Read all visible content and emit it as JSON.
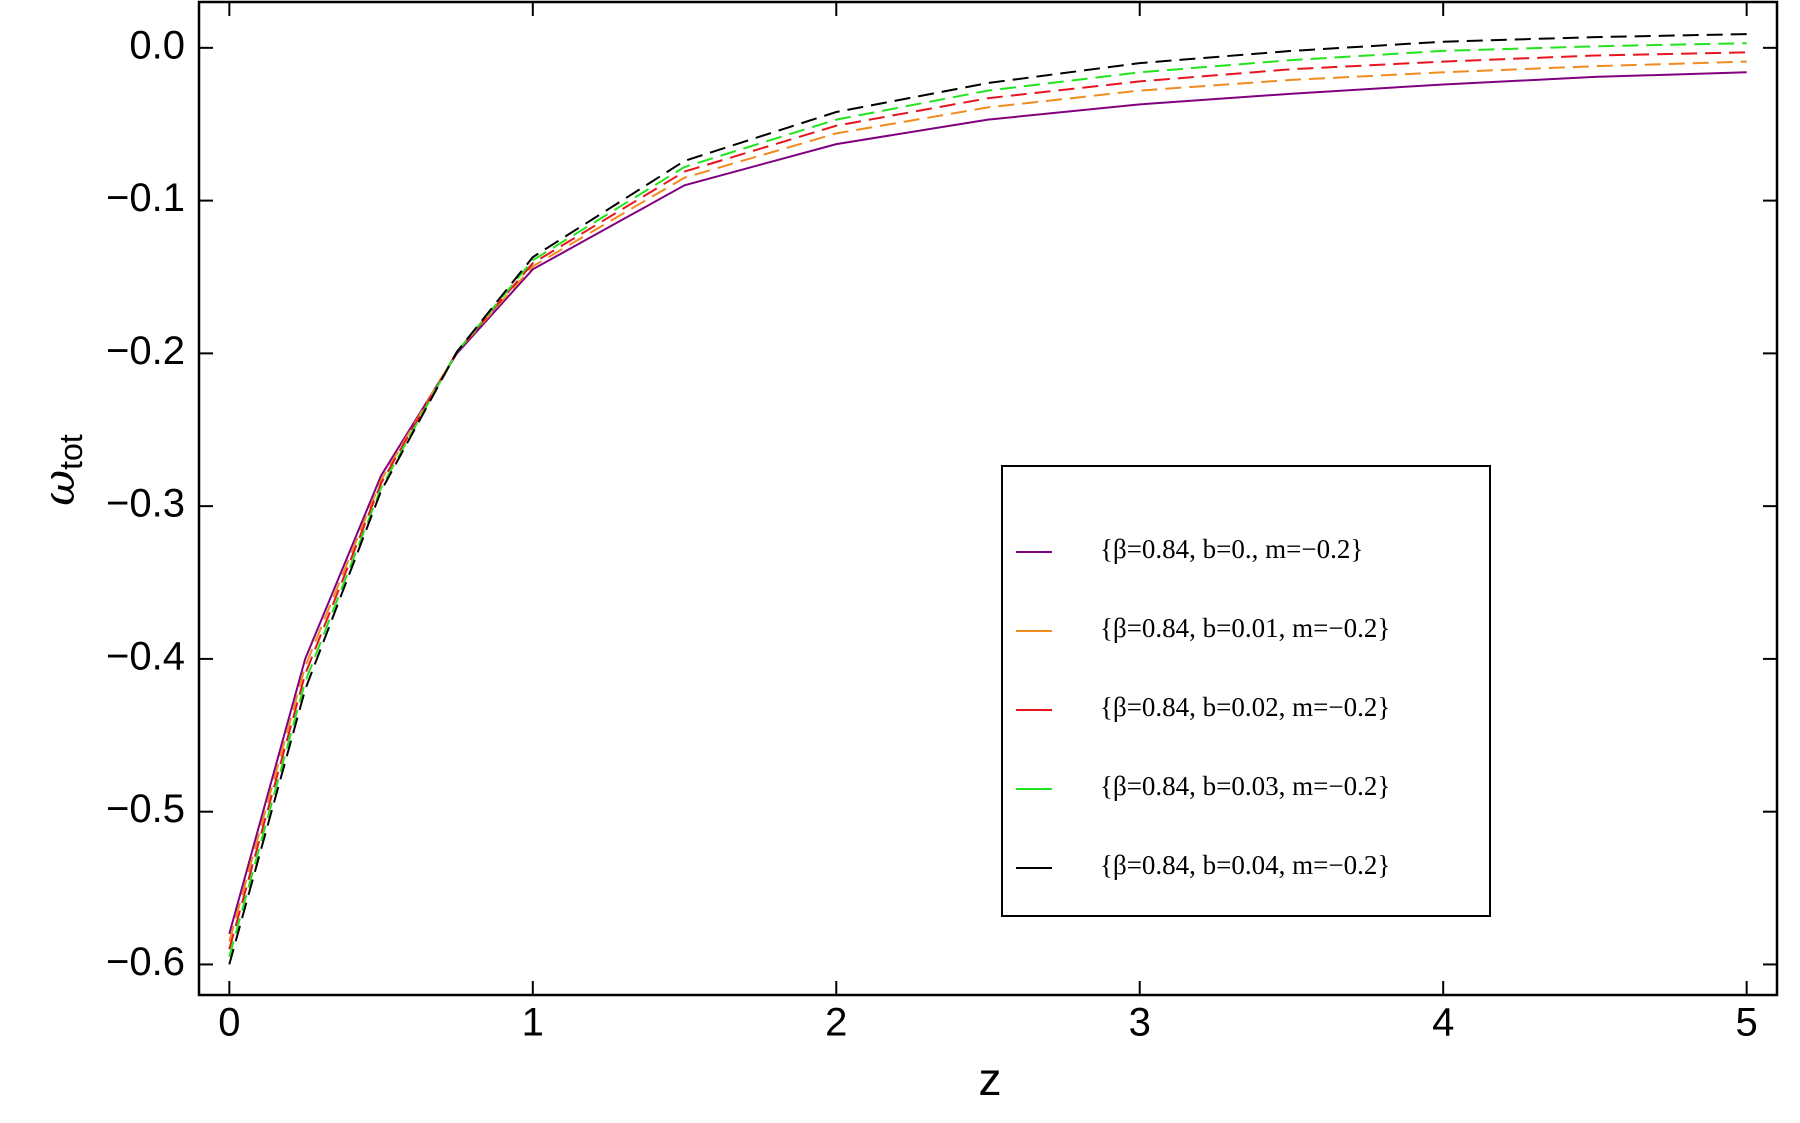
{
  "chart_data": {
    "type": "line",
    "x_label": "z",
    "y_label": {
      "symbol": "ω",
      "subscript": "tot"
    },
    "x": [
      0,
      0.25,
      0.5,
      0.75,
      1,
      1.5,
      2,
      2.5,
      3,
      3.5,
      4,
      4.5,
      5
    ],
    "series": [
      {
        "name": "{β=0.84, b=0., m=−0.2}",
        "color": "#800080",
        "dashed": false,
        "values": [
          -0.58,
          -0.4,
          -0.28,
          -0.2,
          -0.145,
          -0.09,
          -0.063,
          -0.047,
          -0.037,
          -0.03,
          -0.024,
          -0.019,
          -0.016
        ]
      },
      {
        "name": "{β=0.84, b=0.01, m=−0.2}",
        "color": "#f08c1e",
        "dashed": true,
        "values": [
          -0.585,
          -0.405,
          -0.283,
          -0.199,
          -0.143,
          -0.085,
          -0.056,
          -0.039,
          -0.028,
          -0.021,
          -0.016,
          -0.012,
          -0.009
        ]
      },
      {
        "name": "{β=0.84, b=0.02, m=−0.2}",
        "color": "#e8141e",
        "dashed": true,
        "values": [
          -0.59,
          -0.41,
          -0.285,
          -0.199,
          -0.141,
          -0.081,
          -0.051,
          -0.033,
          -0.022,
          -0.014,
          -0.009,
          -0.005,
          -0.003
        ]
      },
      {
        "name": "{β=0.84, b=0.03, m=−0.2}",
        "color": "#22e41e",
        "dashed": true,
        "values": [
          -0.595,
          -0.415,
          -0.288,
          -0.199,
          -0.139,
          -0.078,
          -0.047,
          -0.028,
          -0.016,
          -0.008,
          -0.002,
          0.001,
          0.003
        ]
      },
      {
        "name": "{β=0.84, b=0.04, m=−0.2}",
        "color": "#000000",
        "dashed": true,
        "values": [
          -0.6,
          -0.42,
          -0.29,
          -0.199,
          -0.137,
          -0.074,
          -0.042,
          -0.023,
          -0.01,
          -0.002,
          0.004,
          0.007,
          0.009
        ]
      }
    ],
    "xlim": [
      -0.1,
      5.1
    ],
    "ylim": [
      -0.62,
      0.03
    ],
    "xticks": [
      0,
      1,
      2,
      3,
      4,
      5
    ],
    "yticks": [
      {
        "value": 0,
        "label": "0.0"
      },
      {
        "value": -0.1,
        "label": "−0.1"
      },
      {
        "value": -0.2,
        "label": "−0.2"
      },
      {
        "value": -0.3,
        "label": "−0.3"
      },
      {
        "value": -0.4,
        "label": "−0.4"
      },
      {
        "value": -0.5,
        "label": "−0.5"
      },
      {
        "value": -0.6,
        "label": "−0.6"
      }
    ],
    "grid": false
  }
}
